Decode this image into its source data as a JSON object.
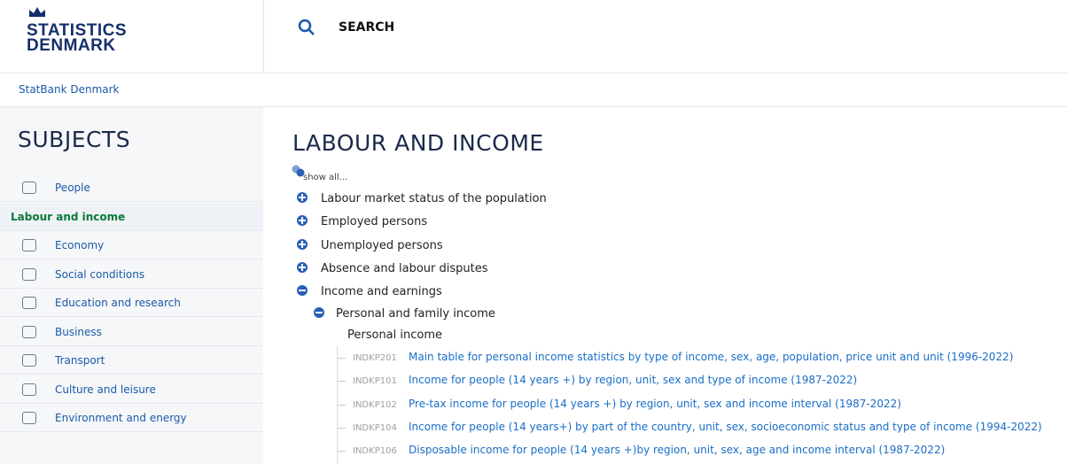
{
  "header": {
    "logo": [
      "STATISTICS",
      "DENMARK"
    ],
    "search": "SEARCH"
  },
  "breadcrumb": "StatBank Denmark",
  "sidebar": {
    "title": "SUBJECTS",
    "items": [
      "People",
      "Labour and income",
      "Economy",
      "Social conditions",
      "Education and research",
      "Business",
      "Transport",
      "Culture and leisure",
      "Environment and energy"
    ],
    "selected": "Labour and income"
  },
  "main": {
    "title": "LABOUR AND INCOME",
    "show_all": "show all...",
    "topics": [
      {
        "label": "Labour market status of the population",
        "open": false
      },
      {
        "label": "Employed persons",
        "open": false
      },
      {
        "label": "Unemployed persons",
        "open": false
      },
      {
        "label": "Absence and labour disputes",
        "open": false
      },
      {
        "label": "Income and earnings",
        "open": true
      }
    ],
    "subtopic": "Personal and family income",
    "group": "Personal income",
    "tables": [
      {
        "code": "INDKP201",
        "text": "Main table for personal income statistics by type of income, sex, age, population, price unit and unit (1996-2022)"
      },
      {
        "code": "INDKP101",
        "text": "Income for people (14 years +) by region, unit, sex and type of income (1987-2022)"
      },
      {
        "code": "INDKP102",
        "text": "Pre-tax income for people (14 years +) by region, unit, sex and income interval (1987-2022)"
      },
      {
        "code": "INDKP104",
        "text": "Income for people (14 years+) by part of the country, unit, sex, socioeconomic status and type of income (1994-2022)"
      },
      {
        "code": "INDKP106",
        "text": "Disposable income for people (14 years +)by region, unit, sex, age and income interval (1987-2022)"
      }
    ]
  }
}
